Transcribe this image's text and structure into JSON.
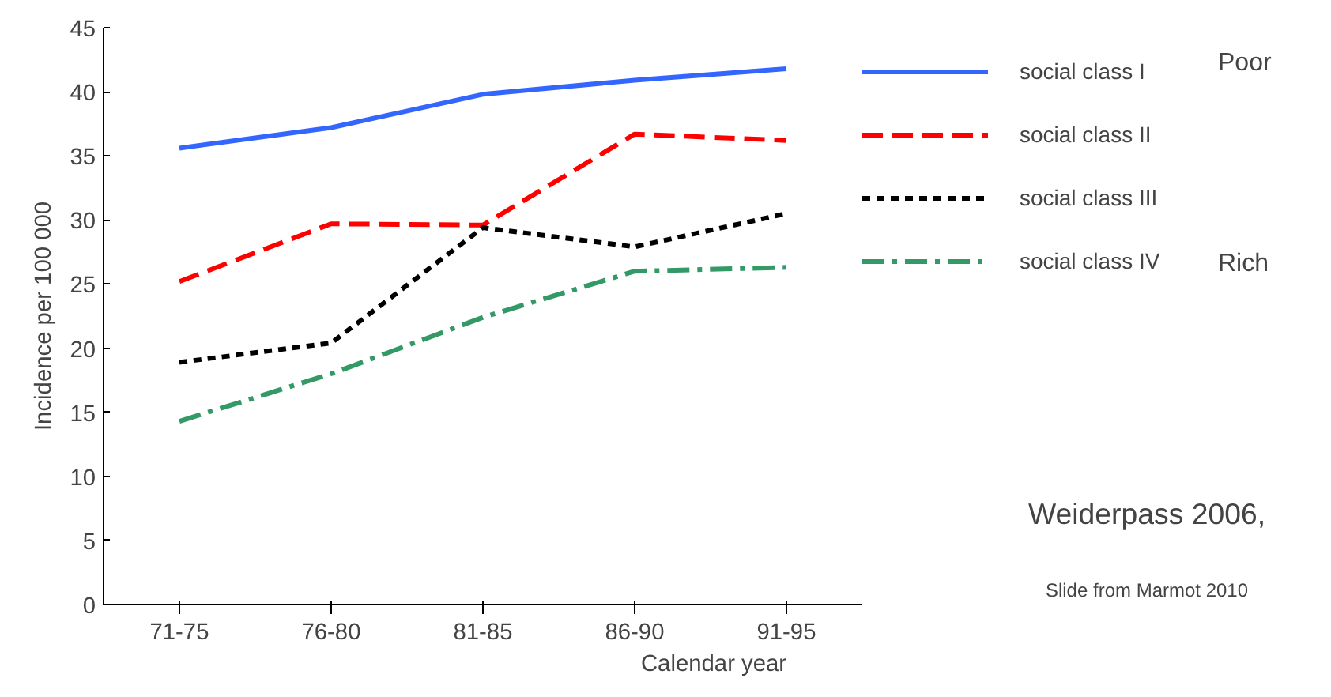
{
  "chart_data": {
    "type": "line",
    "xlabel": "Calendar year",
    "ylabel": "Incidence per 100 000",
    "categories": [
      "71-75",
      "76-80",
      "81-85",
      "86-90",
      "91-95"
    ],
    "ylim": [
      0,
      45
    ],
    "yticks": [
      0,
      5,
      10,
      15,
      20,
      25,
      30,
      35,
      40,
      45
    ],
    "grid": false,
    "legend": "right",
    "marker": "none",
    "series": [
      {
        "name": "social class I",
        "color": "#3366ff",
        "line_style": "solid",
        "values": [
          35.6,
          37.2,
          39.8,
          40.9,
          41.8
        ]
      },
      {
        "name": "social class II",
        "color": "#ff0000",
        "line_style": "dashed",
        "values": [
          25.2,
          29.7,
          29.6,
          36.7,
          36.2
        ]
      },
      {
        "name": "social class III",
        "color": "#000000",
        "line_style": "dotted",
        "values": [
          18.9,
          20.4,
          29.4,
          27.9,
          30.5
        ]
      },
      {
        "name": "social class IV",
        "color": "#339966",
        "line_style": "dashdot",
        "values": [
          14.3,
          18.0,
          22.4,
          26.0,
          26.3
        ]
      }
    ],
    "annotations": [
      "Poor",
      "Rich",
      "Weiderpass 2006,",
      "Slide from Marmot 2010"
    ]
  }
}
